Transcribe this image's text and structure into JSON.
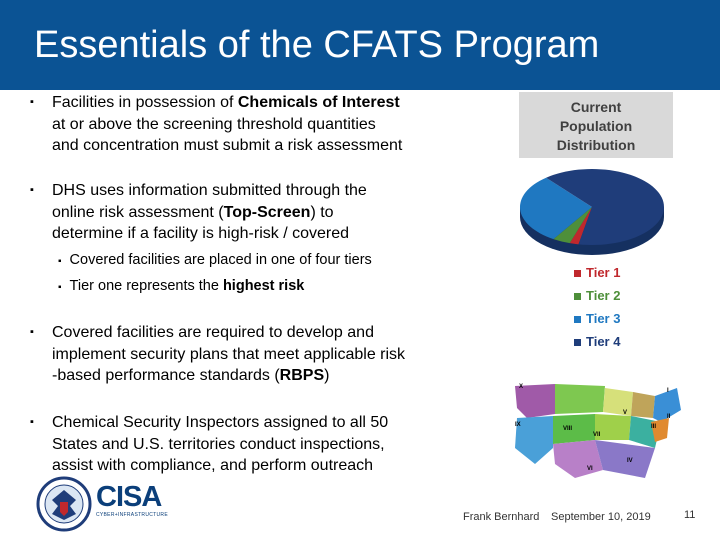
{
  "title": "Essentials of the CFATS Program",
  "bullets": [
    {
      "lines": [
        [
          "Facilities in possession of ",
          {
            "b": "Chemicals of Interest"
          }
        ],
        [
          "at or above the screening threshold quantities"
        ],
        [
          "and concentration must submit a risk assessment"
        ]
      ]
    },
    {
      "lines": [
        [
          "DHS uses information submitted through the"
        ],
        [
          "online risk assessment (",
          {
            "b": "Top-Screen"
          },
          ") to"
        ],
        [
          "determine if a facility is high-risk / covered"
        ]
      ]
    },
    {
      "lines": [
        [
          "Covered facilities are required to develop and"
        ],
        [
          "implement security plans that meet applicable risk"
        ],
        [
          "-based performance standards (",
          {
            "b": "RBPS"
          },
          ")"
        ]
      ]
    },
    {
      "lines": [
        [
          "Chemical Security Inspectors assigned to all 50"
        ],
        [
          "States and U.S. territories conduct inspections,"
        ],
        [
          "assist with compliance, and perform outreach"
        ]
      ]
    }
  ],
  "subbullets": [
    [
      "Covered facilities are placed in one of four tiers"
    ],
    [
      "Tier one",
      " represents the ",
      {
        "b": "highest risk"
      }
    ]
  ],
  "population_box": [
    "Current",
    "Population",
    "Distribution"
  ],
  "chart_data": {
    "type": "pie",
    "categories": [
      "Tier 1",
      "Tier 2",
      "Tier 3",
      "Tier 4"
    ],
    "values": [
      2,
      4,
      30,
      64
    ],
    "colors": [
      "#c0282d",
      "#4e8f3a",
      "#1f78c1",
      "#1f3d7a"
    ],
    "title": ""
  },
  "map_labels": [
    "X",
    "IX",
    "VIII",
    "VII",
    "V",
    "III",
    "IV",
    "VI",
    "I",
    "II"
  ],
  "footer": {
    "presenter": "Frank Bernhard",
    "date": "September 10, 2019",
    "page": "11"
  },
  "logo": {
    "text": "CISA",
    "sub": "CYBER+INFRASTRUCTURE"
  }
}
